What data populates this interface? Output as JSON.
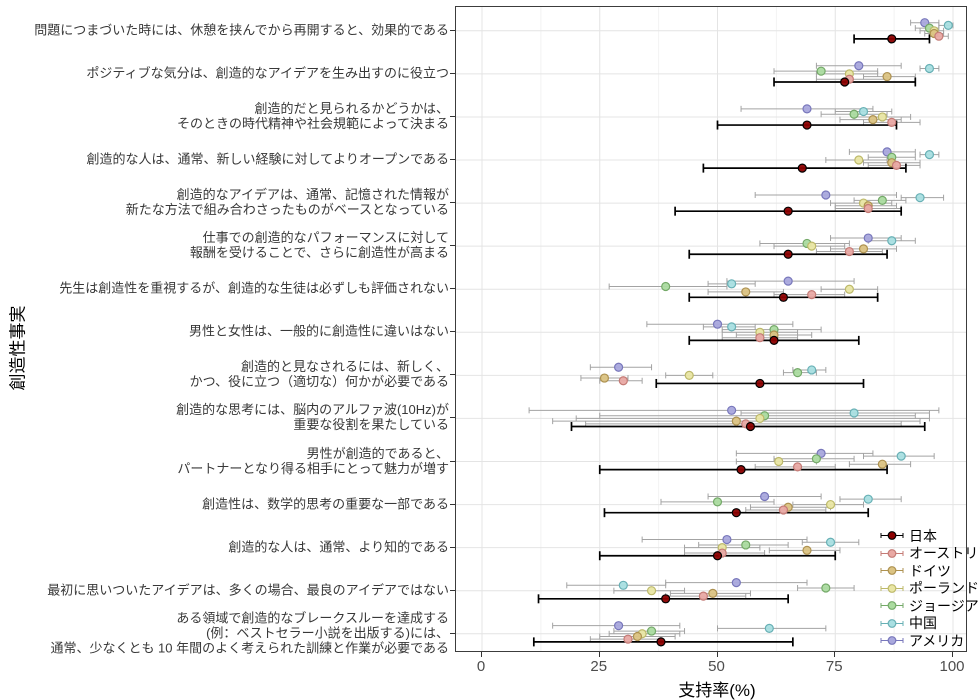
{
  "chart_data": {
    "type": "scatter",
    "subtype": "dot-plot-with-error-bars",
    "title": "",
    "xlabel": "支持率(%)",
    "ylabel": "創造性事実",
    "xlim": [
      0,
      100
    ],
    "x_ticks": [
      "0",
      "25",
      "50",
      "75",
      "100"
    ],
    "x_tick_values": [
      0,
      25,
      50,
      75,
      100
    ],
    "grid": true,
    "legend_position": "right-inside",
    "series_order": [
      "日本",
      "オーストリア",
      "ドイツ",
      "ポーランド",
      "ジョージア",
      "中国",
      "アメリカ"
    ],
    "colors": {
      "日本": {
        "fill": "#8b0000",
        "stroke": "#000000"
      },
      "オーストリア": {
        "fill": "#e9a9a4",
        "stroke": "#c47b76"
      },
      "ドイツ": {
        "fill": "#dbc383",
        "stroke": "#ad9150"
      },
      "ポーランド": {
        "fill": "#e9e6a4",
        "stroke": "#bdb96a"
      },
      "ジョージア": {
        "fill": "#abdba0",
        "stroke": "#74a968"
      },
      "中国": {
        "fill": "#a9dfe2",
        "stroke": "#68b0b5"
      },
      "アメリカ": {
        "fill": "#a9a8dd",
        "stroke": "#7877bb"
      }
    },
    "error_bar_colors": {
      "日本": "#000000",
      "default": "#a3a3a3"
    },
    "items": [
      {
        "label_lines": [
          "問題につまづいた時には、休憩を挟んでから再開すると、効果的である"
        ],
        "estimates": [
          [
            87,
            79,
            95
          ],
          [
            97,
            95,
            99
          ],
          [
            96,
            94,
            98
          ],
          [
            96,
            93,
            98
          ],
          [
            95,
            92,
            97
          ],
          [
            99,
            97,
            100
          ],
          [
            94,
            91,
            97
          ]
        ]
      },
      {
        "label_lines": [
          "ポジティブな気分は、創造的なアイデアを生み出すのに役立つ"
        ],
        "estimates": [
          [
            77,
            62,
            92
          ],
          [
            78,
            71,
            86
          ],
          [
            86,
            81,
            92
          ],
          [
            78,
            71,
            84
          ],
          [
            72,
            62,
            84
          ],
          [
            95,
            93,
            97
          ],
          [
            80,
            71,
            89
          ]
        ]
      },
      {
        "label_lines": [
          "創造的だと見られるかどうかは、",
          "そのときの時代精神や社会規範によって決まる"
        ],
        "estimates": [
          [
            69,
            50,
            88
          ],
          [
            87,
            81,
            93
          ],
          [
            83,
            76,
            89
          ],
          [
            85,
            79,
            91
          ],
          [
            79,
            72,
            86
          ],
          [
            81,
            75,
            87
          ],
          [
            69,
            55,
            83
          ]
        ]
      },
      {
        "label_lines": [
          "創造的な人は、通常、新しい経験に対してよりオープンである"
        ],
        "estimates": [
          [
            68,
            47,
            90
          ],
          [
            88,
            82,
            93
          ],
          [
            87,
            81,
            93
          ],
          [
            80,
            73,
            86
          ],
          [
            87,
            82,
            92
          ],
          [
            95,
            93,
            97
          ],
          [
            86,
            78,
            92
          ]
        ]
      },
      {
        "label_lines": [
          "創造的なアイデアは、通常、記憶された情報が",
          "新たな方法で組み合わさったものがベースとなっている"
        ],
        "estimates": [
          [
            65,
            41,
            89
          ],
          [
            82,
            75,
            89
          ],
          [
            82,
            75,
            88
          ],
          [
            81,
            74,
            87
          ],
          [
            85,
            79,
            90
          ],
          [
            93,
            89,
            98
          ],
          [
            73,
            58,
            88
          ]
        ]
      },
      {
        "label_lines": [
          "仕事での創造的なパフォーマンスに対して",
          "報酬を受けることで、さらに創造性が高まる"
        ],
        "estimates": [
          [
            65,
            44,
            86
          ],
          [
            78,
            71,
            85
          ],
          [
            81,
            74,
            88
          ],
          [
            70,
            62,
            77
          ],
          [
            69,
            59,
            78
          ],
          [
            87,
            82,
            92
          ],
          [
            82,
            74,
            89
          ]
        ]
      },
      {
        "label_lines": [
          "先生は創造性を重視するが、創造的な生徒は必ずしも評価されない"
        ],
        "estimates": [
          [
            64,
            44,
            84
          ],
          [
            70,
            62,
            77
          ],
          [
            56,
            48,
            64
          ],
          [
            78,
            72,
            84
          ],
          [
            39,
            27,
            52
          ],
          [
            53,
            48,
            58
          ],
          [
            65,
            52,
            79
          ]
        ]
      },
      {
        "label_lines": [
          "男性と女性は、一般的に創造性に違いはない"
        ],
        "estimates": [
          [
            62,
            44,
            80
          ],
          [
            59,
            51,
            67
          ],
          [
            62,
            54,
            70
          ],
          [
            59,
            51,
            67
          ],
          [
            62,
            51,
            72
          ],
          [
            53,
            47,
            58
          ],
          [
            50,
            35,
            66
          ]
        ]
      },
      {
        "label_lines": [
          "創造的と見なされるには、新しく、",
          "かつ、役に立つ（適切な）何かが必要である"
        ],
        "estimates": [
          [
            59,
            37,
            81
          ],
          [
            30,
            25,
            34
          ],
          [
            26,
            21,
            31
          ],
          [
            44,
            39,
            49
          ],
          [
            67,
            64,
            71
          ],
          [
            70,
            66,
            73
          ],
          [
            29,
            23,
            36
          ]
        ]
      },
      {
        "label_lines": [
          "創造的な思考には、脳内のアルファ波(10Hz)が",
          "重要な役割を果たしている"
        ],
        "estimates": [
          [
            57,
            19,
            94
          ],
          [
            56,
            22,
            89
          ],
          [
            54,
            15,
            93
          ],
          [
            59,
            20,
            95
          ],
          [
            60,
            25,
            92
          ],
          [
            79,
            55,
            95
          ],
          [
            53,
            10,
            97
          ]
        ]
      },
      {
        "label_lines": [
          "男性が創造的であると、",
          "パートナーとなり得る相手にとって魅力が増す"
        ],
        "estimates": [
          [
            55,
            25,
            86
          ],
          [
            67,
            58,
            75
          ],
          [
            85,
            78,
            91
          ],
          [
            63,
            54,
            71
          ],
          [
            71,
            62,
            79
          ],
          [
            89,
            81,
            96
          ],
          [
            72,
            54,
            83
          ]
        ]
      },
      {
        "label_lines": [
          "創造性は、数学的思考の重要な一部である"
        ],
        "estimates": [
          [
            54,
            26,
            82
          ],
          [
            64,
            56,
            73
          ],
          [
            65,
            57,
            74
          ],
          [
            74,
            66,
            81
          ],
          [
            50,
            38,
            62
          ],
          [
            82,
            76,
            89
          ],
          [
            60,
            48,
            72
          ]
        ]
      },
      {
        "label_lines": [
          "創造的な人は、通常、より知的である"
        ],
        "estimates": [
          [
            50,
            25,
            75
          ],
          [
            51,
            43,
            60
          ],
          [
            69,
            61,
            76
          ],
          [
            51,
            43,
            59
          ],
          [
            56,
            46,
            65
          ],
          [
            74,
            68,
            80
          ],
          [
            52,
            34,
            69
          ]
        ]
      },
      {
        "label_lines": [
          "最初に思いついたアイデアは、多くの場合、最良のアイデアではない"
        ],
        "estimates": [
          [
            39,
            12,
            65
          ],
          [
            47,
            39,
            56
          ],
          [
            49,
            40,
            57
          ],
          [
            36,
            28,
            43
          ],
          [
            73,
            67,
            79
          ],
          [
            30,
            18,
            39
          ],
          [
            54,
            39,
            69
          ]
        ]
      },
      {
        "label_lines": [
          "ある領域で創造的なブレークスルーを達成する",
          "(例：ベストセラー小説を出版する)には、",
          "通常、少なくとも 10 年間のよく考えられた訓練と作業が必要である"
        ],
        "estimates": [
          [
            38,
            11,
            66
          ],
          [
            31,
            23,
            38
          ],
          [
            33,
            25,
            41
          ],
          [
            34,
            27,
            42
          ],
          [
            36,
            28,
            43
          ],
          [
            61,
            50,
            73
          ],
          [
            29,
            15,
            42
          ]
        ]
      }
    ]
  }
}
